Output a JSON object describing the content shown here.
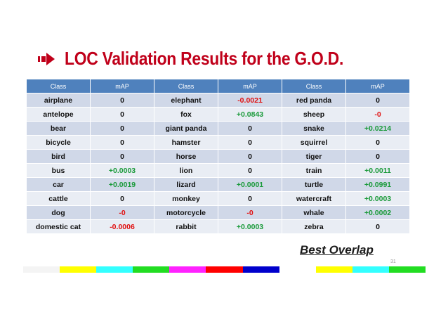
{
  "title": "LOC Validation Results for the G.O.D.",
  "table": {
    "headers": [
      "Class",
      "mAP",
      "Class",
      "mAP",
      "Class",
      "mAP"
    ],
    "rows": [
      [
        {
          "t": "airplane"
        },
        {
          "t": "0"
        },
        {
          "t": "elephant"
        },
        {
          "t": "-0.0021",
          "s": "neg"
        },
        {
          "t": "red panda"
        },
        {
          "t": "0"
        }
      ],
      [
        {
          "t": "antelope"
        },
        {
          "t": "0"
        },
        {
          "t": "fox"
        },
        {
          "t": "+0.0843",
          "s": "pos"
        },
        {
          "t": "sheep"
        },
        {
          "t": "-0",
          "s": "neg"
        }
      ],
      [
        {
          "t": "bear"
        },
        {
          "t": "0"
        },
        {
          "t": "giant panda"
        },
        {
          "t": "0"
        },
        {
          "t": "snake"
        },
        {
          "t": "+0.0214",
          "s": "pos"
        }
      ],
      [
        {
          "t": "bicycle"
        },
        {
          "t": "0"
        },
        {
          "t": "hamster"
        },
        {
          "t": "0"
        },
        {
          "t": "squirrel"
        },
        {
          "t": "0"
        }
      ],
      [
        {
          "t": "bird"
        },
        {
          "t": "0"
        },
        {
          "t": "horse"
        },
        {
          "t": "0"
        },
        {
          "t": "tiger"
        },
        {
          "t": "0"
        }
      ],
      [
        {
          "t": "bus"
        },
        {
          "t": "+0.0003",
          "s": "pos"
        },
        {
          "t": "lion"
        },
        {
          "t": "0"
        },
        {
          "t": "train"
        },
        {
          "t": "+0.0011",
          "s": "pos"
        }
      ],
      [
        {
          "t": "car"
        },
        {
          "t": "+0.0019",
          "s": "pos"
        },
        {
          "t": "lizard"
        },
        {
          "t": "+0.0001",
          "s": "pos"
        },
        {
          "t": "turtle"
        },
        {
          "t": "+0.0991",
          "s": "pos"
        }
      ],
      [
        {
          "t": "cattle"
        },
        {
          "t": "0"
        },
        {
          "t": "monkey"
        },
        {
          "t": "0"
        },
        {
          "t": "watercraft"
        },
        {
          "t": "+0.0003",
          "s": "pos"
        }
      ],
      [
        {
          "t": "dog"
        },
        {
          "t": "-0",
          "s": "neg"
        },
        {
          "t": "motorcycle"
        },
        {
          "t": "-0",
          "s": "neg"
        },
        {
          "t": "whale"
        },
        {
          "t": "+0.0002",
          "s": "pos"
        }
      ],
      [
        {
          "t": "domestic cat"
        },
        {
          "t": "-0.0006",
          "s": "neg"
        },
        {
          "t": "rabbit"
        },
        {
          "t": "+0.0003",
          "s": "pos"
        },
        {
          "t": "zebra"
        },
        {
          "t": "0"
        }
      ]
    ]
  },
  "caption": "Best Overlap",
  "page_number": "31",
  "colors": {
    "title": "#c0001a",
    "header_bg": "#4f81bd",
    "row_odd": "#d0d8e8",
    "row_even": "#e9edf4",
    "negative": "#e01010",
    "positive": "#1a9a3a"
  },
  "icons": {
    "title_bullet": "right-arrow-icon"
  },
  "color_bar": [
    "#f4f4f4",
    "#ffff00",
    "#33ffff",
    "#22dd22",
    "#ff22ff",
    "#ff0000",
    "#0000cc",
    "#ffffff",
    "#ffff00",
    "#33ffff",
    "#22dd22"
  ]
}
